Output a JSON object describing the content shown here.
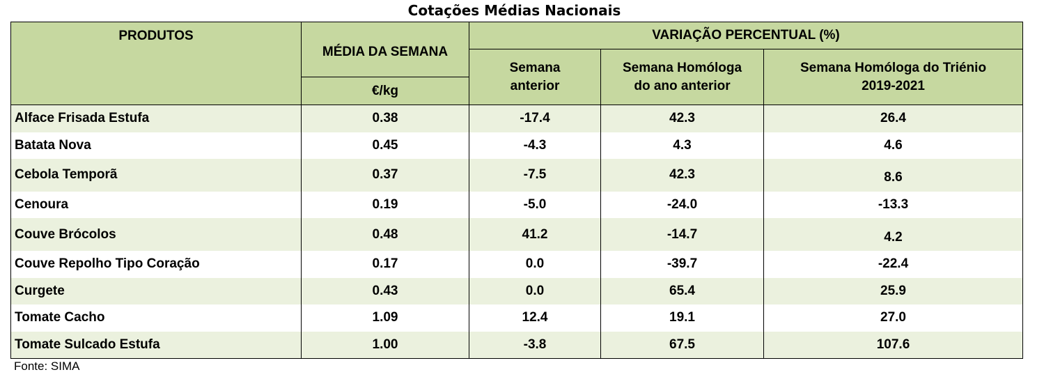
{
  "title": "Cotações Médias Nacionais",
  "headers": {
    "produtos": "PRODUTOS",
    "media": "MÉDIA DA SEMANA",
    "unit": "€/kg",
    "variacao": "VARIAÇÃO PERCENTUAL (%)",
    "semana_anterior_1": "Semana",
    "semana_anterior_2": "anterior",
    "homologa_1": "Semana Homóloga",
    "homologa_2": "do ano anterior",
    "trienio_1": "Semana Homóloga do Triénio",
    "trienio_2": "2019-2021"
  },
  "rows": [
    {
      "produto": "Alface Frisada Estufa",
      "media": "0.38",
      "anterior": "-17.4",
      "homologa": "42.3",
      "trienio": "26.4"
    },
    {
      "produto": "Batata Nova",
      "media": "0.45",
      "anterior": "-4.3",
      "homologa": "4.3",
      "trienio": "4.6"
    },
    {
      "produto": "Cebola Temporã",
      "media": "0.37",
      "anterior": "-7.5",
      "homologa": "42.3",
      "trienio": "8.6"
    },
    {
      "produto": "Cenoura",
      "media": "0.19",
      "anterior": "-5.0",
      "homologa": "-24.0",
      "trienio": "-13.3"
    },
    {
      "produto": "Couve Brócolos",
      "media": "0.48",
      "anterior": "41.2",
      "homologa": "-14.7",
      "trienio": "4.2"
    },
    {
      "produto": "Couve Repolho Tipo Coração",
      "media": "0.17",
      "anterior": "0.0",
      "homologa": "-39.7",
      "trienio": "-22.4"
    },
    {
      "produto": "Curgete",
      "media": "0.43",
      "anterior": "0.0",
      "homologa": "65.4",
      "trienio": "25.9"
    },
    {
      "produto": "Tomate Cacho",
      "media": "1.09",
      "anterior": "12.4",
      "homologa": "19.1",
      "trienio": "27.0"
    },
    {
      "produto": "Tomate Sulcado Estufa",
      "media": "1.00",
      "anterior": "-3.8",
      "homologa": "67.5",
      "trienio": "107.6"
    }
  ],
  "source": "Fonte: SIMA",
  "colors": {
    "header_bg": "#c6d8a0",
    "stripe_bg": "#ebf1de"
  }
}
